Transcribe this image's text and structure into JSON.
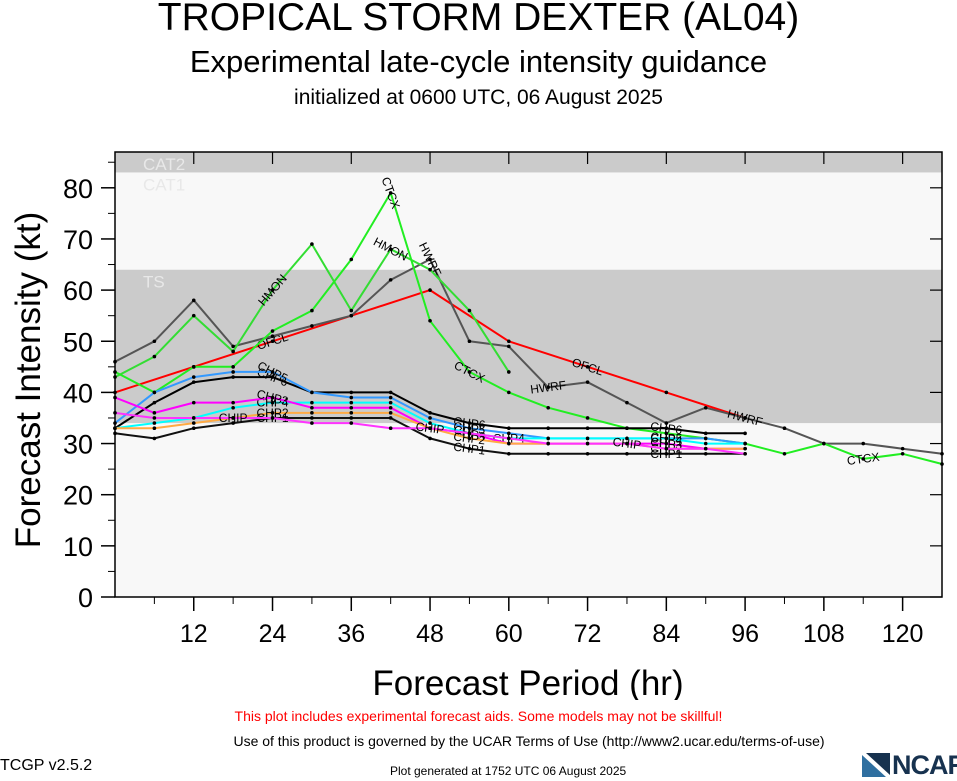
{
  "header": {
    "title": "TROPICAL STORM DEXTER (AL04)",
    "subtitle": "Experimental late-cycle intensity guidance",
    "initialized": "initialized at 0600 UTC, 06 August 2025"
  },
  "footer": {
    "warning": "This plot includes experimental forecast aids. Some models may not be skillful!",
    "terms": "Use of this product is governed by the UCAR Terms of Use (http://www2.ucar.edu/terms-of-use)",
    "version": "TCGP v2.5.2",
    "generated": "Plot generated at 1752 UTC   06 August 2025",
    "logo": "NCAR"
  },
  "chart_data": {
    "type": "line",
    "xlabel": "Forecast Period (hr)",
    "ylabel": "Forecast Intensity (kt)",
    "xlim": [
      0,
      126
    ],
    "ylim": [
      0,
      87
    ],
    "xticks": [
      12,
      24,
      36,
      48,
      60,
      72,
      84,
      96,
      108,
      120
    ],
    "yticks": [
      0,
      10,
      20,
      30,
      40,
      50,
      60,
      70,
      80
    ],
    "bands": [
      {
        "label": "",
        "y0": 0,
        "y1": 34,
        "color": "#f8f8f8"
      },
      {
        "label": "TS",
        "y0": 34,
        "y1": 64,
        "color": "#cbcbcb"
      },
      {
        "label": "CAT1",
        "y0": 64,
        "y1": 83,
        "color": "#f8f8f8"
      },
      {
        "label": "CAT2",
        "y0": 83,
        "y1": 87,
        "color": "#cbcbcb"
      }
    ],
    "series": [
      {
        "name": "OFCL",
        "color": "#ff0000",
        "label_at": [
          24,
          72
        ],
        "x": [
          0,
          12,
          24,
          36,
          48,
          60,
          72,
          84,
          96
        ],
        "y": [
          40,
          45,
          50,
          55,
          60,
          50,
          45,
          40,
          35
        ]
      },
      {
        "name": "HWRF",
        "color": "#555555",
        "label_at": [
          48,
          66,
          96
        ],
        "x": [
          0,
          6,
          12,
          18,
          24,
          30,
          36,
          42,
          48,
          54,
          60,
          66,
          72,
          78,
          84,
          90,
          96,
          102,
          108,
          114,
          120,
          126
        ],
        "y": [
          46,
          50,
          58,
          49,
          51,
          53,
          55,
          62,
          66,
          50,
          49,
          41,
          42,
          38,
          34,
          37,
          35,
          33,
          30,
          30,
          29,
          28
        ]
      },
      {
        "name": "HMON",
        "color": "#33dd33",
        "label_at": [
          24,
          42
        ],
        "x": [
          0,
          6,
          12,
          18,
          24,
          30,
          36,
          42,
          48,
          54,
          60
        ],
        "y": [
          43,
          47,
          55,
          48,
          60,
          69,
          56,
          68,
          64,
          56,
          44
        ]
      },
      {
        "name": "CTCX",
        "color": "#22ee22",
        "label_at": [
          42,
          54,
          114
        ],
        "x": [
          0,
          6,
          12,
          18,
          24,
          30,
          36,
          42,
          48,
          54,
          60,
          66,
          72,
          78,
          84,
          90,
          96,
          102,
          108,
          114,
          120,
          126
        ],
        "y": [
          44,
          40,
          45,
          45,
          52,
          56,
          66,
          79,
          54,
          44,
          40,
          37,
          35,
          33,
          32,
          31,
          30,
          28,
          30,
          27,
          28,
          26
        ]
      },
      {
        "name": "CHP6",
        "color": "#000000",
        "label_at": [
          24,
          54,
          84
        ],
        "x": [
          0,
          6,
          12,
          18,
          24,
          30,
          36,
          42,
          48,
          54,
          60,
          66,
          72,
          78,
          84,
          90,
          96
        ],
        "y": [
          33,
          38,
          42,
          43,
          43,
          40,
          40,
          40,
          36,
          34,
          33,
          33,
          33,
          33,
          33,
          32,
          32
        ]
      },
      {
        "name": "CHP5",
        "color": "#3399ff",
        "label_at": [
          24,
          54,
          84
        ],
        "x": [
          0,
          6,
          12,
          18,
          24,
          30,
          36,
          42,
          48,
          54,
          60,
          66,
          72,
          78,
          84,
          90,
          96
        ],
        "y": [
          34,
          40,
          43,
          44,
          44,
          40,
          39,
          39,
          35,
          33,
          32,
          31,
          31,
          31,
          31,
          31,
          30
        ]
      },
      {
        "name": "CHP4",
        "color": "#00ffff",
        "label_at": [
          24,
          60,
          84
        ],
        "x": [
          0,
          6,
          12,
          18,
          24,
          30,
          36,
          42,
          48,
          54,
          60,
          66,
          72,
          78,
          84,
          90,
          96
        ],
        "y": [
          33,
          34,
          35,
          37,
          38,
          38,
          38,
          38,
          34,
          32,
          31,
          31,
          31,
          31,
          31,
          30,
          30
        ]
      },
      {
        "name": "CHP3",
        "color": "#ff00ff",
        "label_at": [
          24,
          54,
          84
        ],
        "x": [
          0,
          6,
          12,
          18,
          24,
          30,
          36,
          42,
          48,
          54,
          60,
          66,
          72,
          78,
          84,
          90,
          96
        ],
        "y": [
          39,
          36,
          38,
          38,
          39,
          37,
          37,
          37,
          33,
          32,
          30,
          30,
          30,
          30,
          30,
          29,
          29
        ]
      },
      {
        "name": "CHP2",
        "color": "#ffaa44",
        "label_at": [
          24,
          54,
          84
        ],
        "x": [
          0,
          6,
          12,
          18,
          24,
          30,
          36,
          42,
          48,
          54,
          60,
          66,
          72,
          78,
          84,
          90,
          96
        ],
        "y": [
          33,
          33,
          34,
          35,
          36,
          36,
          36,
          36,
          33,
          31,
          30,
          30,
          30,
          30,
          29,
          29,
          29
        ]
      },
      {
        "name": "CHP1",
        "color": "#111111",
        "label_at": [
          24,
          54,
          84
        ],
        "x": [
          0,
          6,
          12,
          18,
          24,
          30,
          36,
          42,
          48,
          54,
          60,
          66,
          72,
          78,
          84,
          90,
          96
        ],
        "y": [
          32,
          31,
          33,
          34,
          35,
          35,
          35,
          35,
          31,
          29,
          28,
          28,
          28,
          28,
          28,
          28,
          28
        ]
      },
      {
        "name": "CHIP",
        "color": "#ff33ff",
        "label_at": [
          18,
          48,
          78
        ],
        "x": [
          0,
          6,
          12,
          18,
          24,
          30,
          36,
          42,
          48,
          54,
          60,
          66,
          72,
          78,
          84,
          90,
          96
        ],
        "y": [
          36,
          35,
          35,
          35,
          35,
          34,
          34,
          33,
          33,
          32,
          31,
          30,
          30,
          30,
          29,
          29,
          28
        ]
      }
    ]
  }
}
